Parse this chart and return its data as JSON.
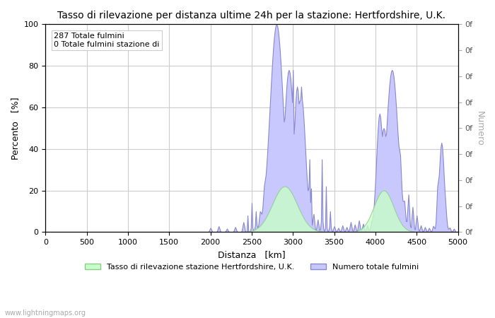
{
  "title": "Tasso di rilevazione per distanza ultime 24h per la stazione: Hertfordshire, U.K.",
  "xlabel": "Distanza   [km]",
  "ylabel_left": "Percento   [%]",
  "ylabel_right": "Numero",
  "annotation_line1": "287 Totale fulmini",
  "annotation_line2": "0 Totale fulmini stazione di",
  "watermark": "www.lightningmaps.org",
  "legend_label1": "Tasso di rilevazione stazione Hertfordshire, U.K.",
  "legend_label2": "Numero totale fulmini",
  "fill_color_blue": "#c8c8ff",
  "line_color_blue": "#8888cc",
  "fill_color_green": "#c8ffc8",
  "line_color_green": "#88cc88",
  "bg_color": "#ffffff",
  "grid_color": "#cccccc",
  "right_label_color": "#aaaaaa",
  "title_fontsize": 10,
  "label_fontsize": 9,
  "tick_fontsize": 8,
  "annot_fontsize": 8,
  "xlim": [
    0,
    5000
  ],
  "ylim": [
    0,
    100
  ],
  "xticks": [
    0,
    500,
    1000,
    1500,
    2000,
    2500,
    3000,
    3500,
    4000,
    4500,
    5000
  ],
  "yticks": [
    0,
    20,
    40,
    60,
    80,
    100
  ],
  "right_yticks": [
    0,
    12.5,
    25,
    37.5,
    50,
    62.5,
    75,
    87.5,
    100
  ],
  "right_labels": [
    "0f",
    "0f",
    "0f",
    "0f",
    "0f",
    "0f",
    "0f",
    "0f",
    "0f"
  ]
}
